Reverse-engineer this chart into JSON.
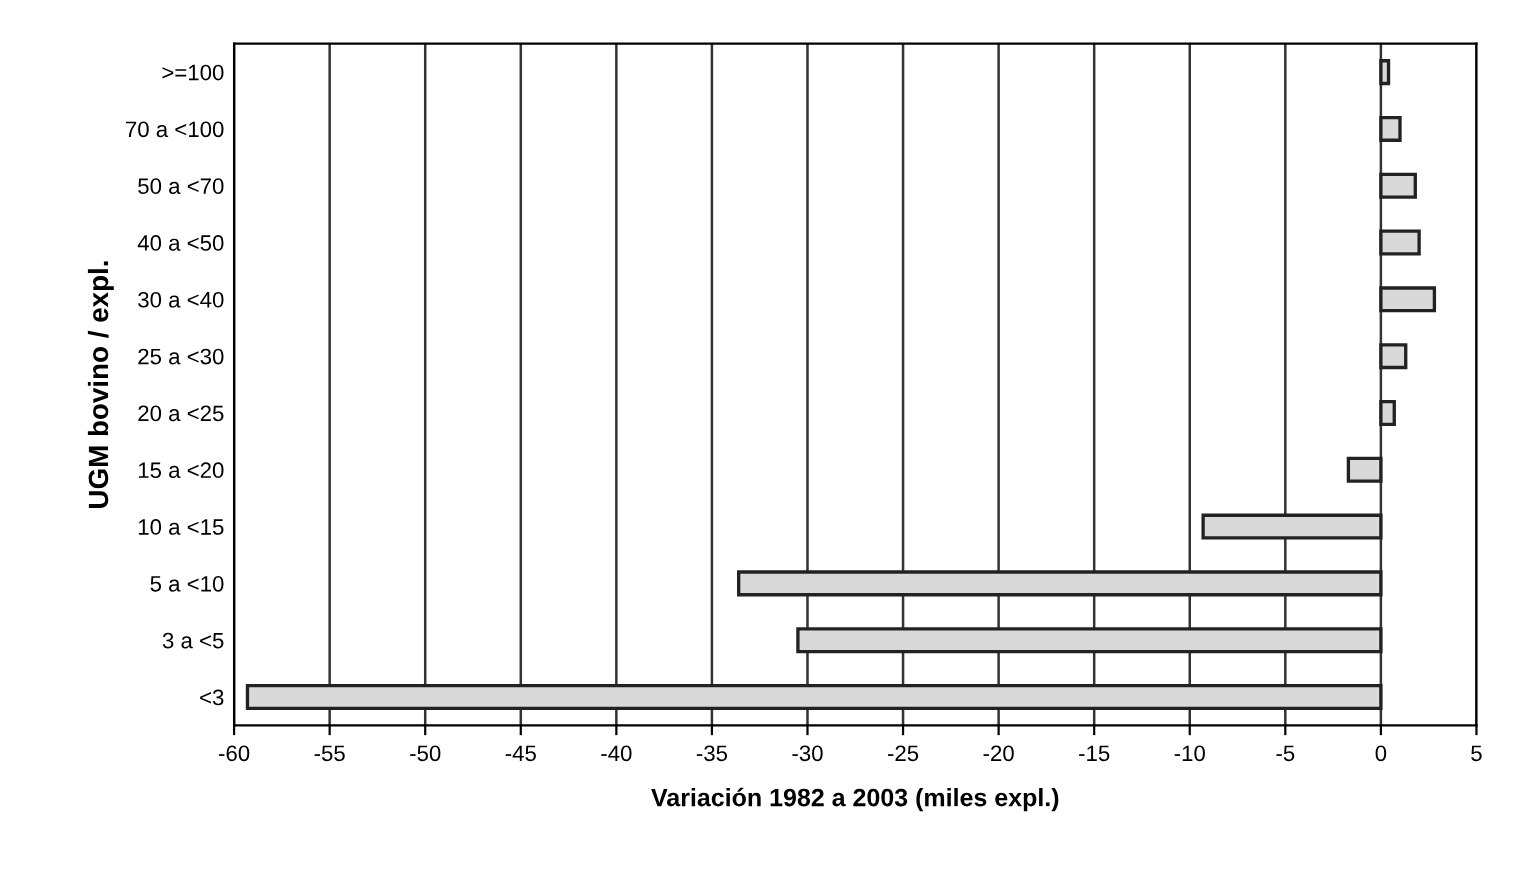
{
  "chart_data": {
    "type": "bar",
    "orientation": "horizontal",
    "xlabel": "Variación 1982 a 2003 (miles expl.)",
    "ylabel": "UGM bovino / expl.",
    "categories": [
      ">=100",
      "70 a <100",
      "50 a <70",
      "40 a <50",
      "30 a <40",
      "25 a <30",
      "20 a <25",
      "15 a <20",
      "10 a <15",
      "5 a <10",
      "3 a <5",
      "<3"
    ],
    "values": [
      0.4,
      1.0,
      1.8,
      2.0,
      2.8,
      1.3,
      0.7,
      -1.7,
      -9.3,
      -33.6,
      -30.5,
      -59.3
    ],
    "color": "#d9d9d9",
    "xlim": [
      -60,
      5
    ],
    "xticks": [
      -60,
      -55,
      -50,
      -45,
      -40,
      -35,
      -30,
      -25,
      -20,
      -15,
      -10,
      -5,
      0,
      5
    ],
    "grid": "x",
    "legend": false
  }
}
